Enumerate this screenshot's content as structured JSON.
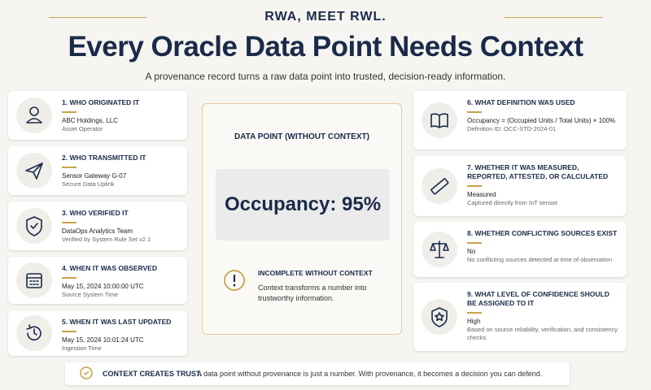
{
  "header": {
    "kicker": "RWA, MEET RWL.",
    "title": "Every Oracle Data Point Needs Context",
    "subtitle": "A provenance record turns a raw data point into trusted, decision-ready information."
  },
  "left_cards": [
    {
      "title": "1. WHO ORIGINATED IT",
      "line1": "ABC Holdings, LLC",
      "line2": "Asset Operator"
    },
    {
      "title": "2. WHO TRANSMITTED IT",
      "line1": "Sensor Gateway G-07",
      "line2": "Secure Data Uplink"
    },
    {
      "title": "3. WHO VERIFIED IT",
      "line1": "DataOps Analytics Team",
      "line2": "Verified by System Rule Set v2.1"
    },
    {
      "title": "4. WHEN IT WAS OBSERVED",
      "line1": "May 15, 2024 10:00:00 UTC",
      "line2": "Source System Time"
    },
    {
      "title": "5. WHEN IT WAS LAST UPDATED",
      "line1": "May 15, 2024 10:01:24 UTC",
      "line2": "Ingestion Time"
    }
  ],
  "center": {
    "label": "DATA POINT (WITHOUT CONTEXT)",
    "value": "Occupancy: 95%",
    "note_title": "INCOMPLETE WITHOUT CONTEXT",
    "note_text": "Context transforms a number into trustworthy information."
  },
  "right_cards": [
    {
      "title": "6. WHAT DEFINITION WAS USED",
      "line1": "Occupancy = (Occupied Units / Total Units) × 100%",
      "line2": "Definition ID: OCC-STD-2024-01"
    },
    {
      "title": "7. WHETHER IT WAS MEASURED, REPORTED, ATTESTED, OR CALCULATED",
      "line1": "Measured",
      "line2": "Captured directly from IoT sensor"
    },
    {
      "title": "8. WHETHER CONFLICTING SOURCES EXIST",
      "line1": "No",
      "line2": "No conflicting sources detected at time of observation"
    },
    {
      "title": "9. WHAT LEVEL OF CONFIDENCE SHOULD BE ASSIGNED TO IT",
      "line1": "High",
      "line2": "Based on source reliability, verification, and consistency checks"
    }
  ],
  "footer": {
    "bold": "CONTEXT CREATES TRUST.",
    "text": "A data point without provenance is just a number. With provenance, it becomes a decision you can defend."
  }
}
